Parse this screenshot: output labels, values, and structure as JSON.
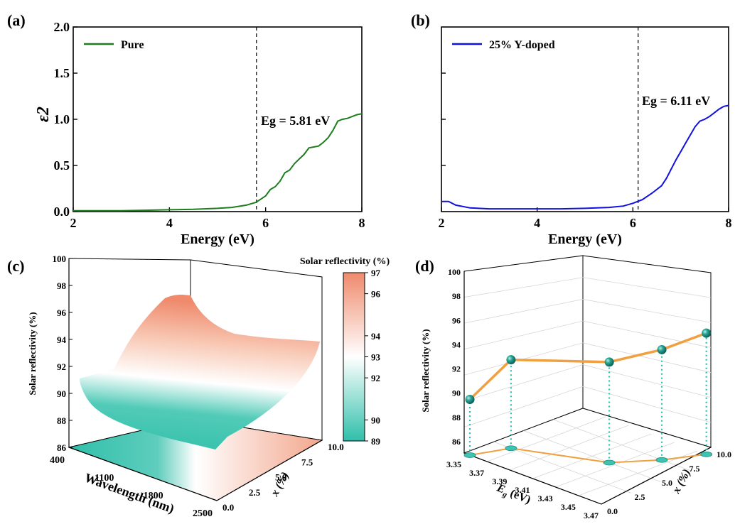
{
  "panels": {
    "a": "(a)",
    "b": "(b)",
    "c": "(c)",
    "d": "(d)"
  },
  "chart_data": [
    {
      "id": "a",
      "type": "line",
      "ylabel": "ε2",
      "xlabel": "Energy (eV)",
      "xlim": [
        2,
        8
      ],
      "ylim": [
        0,
        2.0
      ],
      "xticks": [
        "2",
        "4",
        "6",
        "8"
      ],
      "yticks": [
        "0.0",
        "0.5",
        "1.0",
        "1.5",
        "2.0"
      ],
      "legend": "Pure",
      "line_color": "#1e7d1e",
      "vline": 5.81,
      "annotation": "Eg = 5.81 eV",
      "series": [
        {
          "name": "Pure",
          "x": [
            2.0,
            2.5,
            3.0,
            3.5,
            4.0,
            4.5,
            5.0,
            5.3,
            5.6,
            5.8,
            6.0,
            6.1,
            6.2,
            6.3,
            6.4,
            6.5,
            6.6,
            6.7,
            6.8,
            6.9,
            7.0,
            7.1,
            7.2,
            7.3,
            7.4,
            7.5,
            7.6,
            7.7,
            7.8,
            7.9,
            8.0
          ],
          "y": [
            0.01,
            0.01,
            0.01,
            0.015,
            0.02,
            0.025,
            0.035,
            0.045,
            0.07,
            0.1,
            0.17,
            0.24,
            0.27,
            0.33,
            0.42,
            0.45,
            0.52,
            0.57,
            0.62,
            0.69,
            0.7,
            0.71,
            0.75,
            0.8,
            0.88,
            0.98,
            1.0,
            1.01,
            1.03,
            1.05,
            1.06
          ]
        }
      ]
    },
    {
      "id": "b",
      "type": "line",
      "xlabel": "Energy (eV)",
      "xlim": [
        2,
        8
      ],
      "ylim": [
        0,
        2.0
      ],
      "xticks": [
        "2",
        "4",
        "6",
        "8"
      ],
      "legend": "25% Y-doped",
      "line_color": "#1010e0",
      "vline": 6.11,
      "annotation": "Eg = 6.11 eV",
      "series": [
        {
          "name": "25% Y-doped",
          "x": [
            2.0,
            2.15,
            2.3,
            2.6,
            3.0,
            3.5,
            4.0,
            4.5,
            5.0,
            5.5,
            5.8,
            6.0,
            6.2,
            6.4,
            6.6,
            6.7,
            6.8,
            6.9,
            7.0,
            7.1,
            7.2,
            7.3,
            7.4,
            7.5,
            7.6,
            7.7,
            7.8,
            7.9,
            8.0
          ],
          "y": [
            0.11,
            0.11,
            0.07,
            0.04,
            0.03,
            0.03,
            0.03,
            0.03,
            0.035,
            0.045,
            0.06,
            0.09,
            0.13,
            0.2,
            0.28,
            0.36,
            0.46,
            0.56,
            0.65,
            0.74,
            0.83,
            0.92,
            0.98,
            1.0,
            1.03,
            1.07,
            1.11,
            1.14,
            1.15
          ]
        }
      ]
    },
    {
      "id": "c",
      "type": "surface3d",
      "zlabel": "Solar reflectivity (%)",
      "xlabel": "Wavelength (nm)",
      "ylabel": "x (%)",
      "zticks": [
        "86",
        "88",
        "90",
        "92",
        "94",
        "96",
        "98",
        "100"
      ],
      "xticks": [
        "400",
        "1100",
        "1800",
        "2500"
      ],
      "yticks": [
        "0.0",
        "2.5",
        "5.0",
        "7.5",
        "10.0"
      ],
      "colorbar_title": "Solar reflectivity (%)",
      "colorbar_ticks": [
        "89",
        "90",
        "92",
        "93",
        "94",
        "96",
        "97"
      ],
      "colormap": [
        "#2fbfaa",
        "#ffffff",
        "#ef8a6c"
      ]
    },
    {
      "id": "d",
      "type": "scatter3d",
      "zlabel": "Solar reflectivity (%)",
      "xlabel": "Eg (eV)",
      "ylabel": "x (%)",
      "zticks": [
        "86",
        "88",
        "90",
        "92",
        "94",
        "96",
        "98",
        "100"
      ],
      "xticks": [
        "3.35",
        "3.37",
        "3.39",
        "3.41",
        "3.43",
        "3.45",
        "3.47"
      ],
      "yticks": [
        "0.0",
        "2.5",
        "5.0",
        "7.5",
        "10.0"
      ],
      "line_color": "#f0a040",
      "point_color": "#2a9d8f",
      "points": [
        {
          "x_pct": 0.0,
          "Eg": 3.355,
          "R": 89.6
        },
        {
          "x_pct": 2.5,
          "Eg": 3.365,
          "R": 92.3
        },
        {
          "x_pct": 5.0,
          "Eg": 3.425,
          "R": 93.3
        },
        {
          "x_pct": 7.5,
          "Eg": 3.445,
          "R": 94.1
        },
        {
          "x_pct": 10.0,
          "Eg": 3.458,
          "R": 95.0
        }
      ]
    }
  ]
}
